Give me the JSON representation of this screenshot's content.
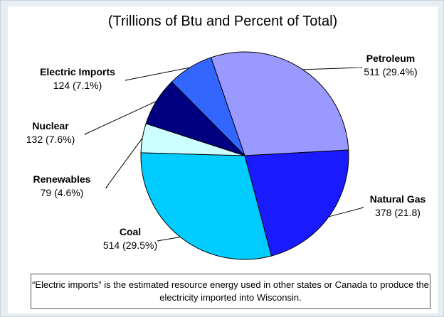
{
  "chart_data": {
    "type": "pie",
    "title": "(Trillions of Btu and Percent of Total)",
    "slices": [
      {
        "name": "Petroleum",
        "value": 511,
        "label": "511 (29.4%)",
        "color": "#9999ff"
      },
      {
        "name": "Natural Gas",
        "value": 378,
        "label": "378 (21.8)",
        "color": "#1a1aff"
      },
      {
        "name": "Coal",
        "value": 514,
        "label": "514 (29.5%)",
        "color": "#00ccff"
      },
      {
        "name": "Renewables",
        "value": 79,
        "label": "79 (4.6%)",
        "color": "#ccffff"
      },
      {
        "name": "Nuclear",
        "value": 132,
        "label": "132 (7.6%)",
        "color": "#000080"
      },
      {
        "name": "Electric Imports",
        "value": 124,
        "label": "124 (7.1%)",
        "color": "#3366ff"
      }
    ]
  },
  "note": "“Electric imports” is the estimated resource energy used in other states or Canada to produce the electricity imported into Wisconsin."
}
